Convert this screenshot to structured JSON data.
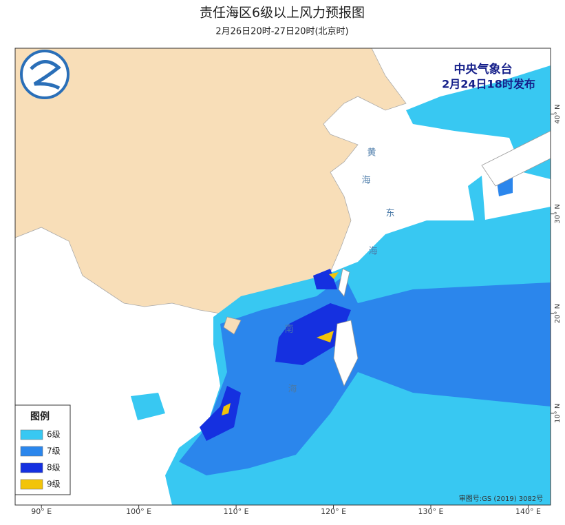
{
  "header": {
    "title": "责任海区6级以上风力预报图",
    "subtitle": "2月26日20时-27日20时(北京时)"
  },
  "issuer": {
    "name": "中央气象台",
    "time": "2月24日18时发布"
  },
  "map": {
    "lonlim": [
      87.3,
      142.3
    ],
    "latlim": [
      0.8,
      46.6
    ],
    "lonticks": [
      {
        "value": 90,
        "label": "90° E"
      },
      {
        "value": 100,
        "label": "100° E"
      },
      {
        "value": 110,
        "label": "110° E"
      },
      {
        "value": 120,
        "label": "120° E"
      },
      {
        "value": 130,
        "label": "130° E"
      },
      {
        "value": 140,
        "label": "140° E"
      }
    ],
    "latticks": [
      {
        "value": 40,
        "label": "40° N"
      },
      {
        "value": 30,
        "label": "30° N"
      },
      {
        "value": 20,
        "label": "20° N"
      },
      {
        "value": 10,
        "label": "10° N"
      }
    ],
    "seas": [
      "黄",
      "海",
      "东",
      "海",
      "南",
      "海"
    ]
  },
  "legend": {
    "title": "图例",
    "items": [
      {
        "label": "6级",
        "color": "#38c8f2"
      },
      {
        "label": "7级",
        "color": "#2b86ec"
      },
      {
        "label": "8级",
        "color": "#1530e0"
      },
      {
        "label": "9级",
        "color": "#f2c40a"
      }
    ]
  },
  "footer": {
    "approval": "审图号:GS (2019) 3082号"
  }
}
